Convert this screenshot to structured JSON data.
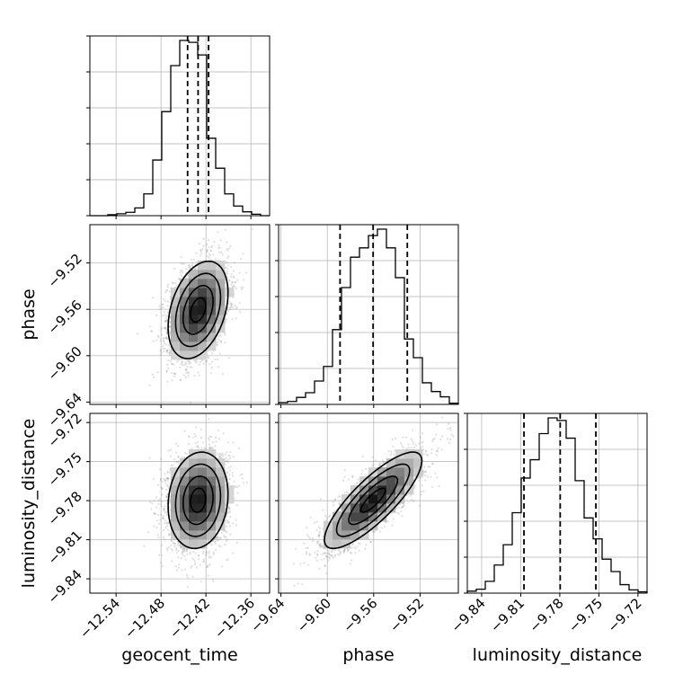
{
  "chart_data": {
    "type": "corner",
    "parameters": [
      "geocent_time",
      "phase",
      "luminosity_distance"
    ],
    "axis_labels": {
      "geocent_time": "geocent_time",
      "phase": "phase",
      "luminosity_distance": "luminosity_distance"
    },
    "grid": true,
    "ranges": {
      "geocent_time": [
        -12.575,
        -12.335
      ],
      "phase": [
        -9.642,
        -9.487
      ],
      "luminosity_distance": [
        -9.851,
        -9.713
      ]
    },
    "ticks": {
      "geocent_time": [
        -12.54,
        -12.48,
        -12.42,
        -12.36
      ],
      "phase": [
        -9.64,
        -9.6,
        -9.56,
        -9.52
      ],
      "luminosity_distance": [
        -9.84,
        -9.81,
        -9.78,
        -9.75,
        -9.72
      ]
    },
    "tick_labels": {
      "geocent_time": [
        "−12.54",
        "−12.48",
        "−12.42",
        "−12.36"
      ],
      "phase": [
        "−9.64",
        "−9.60",
        "−9.56",
        "−9.52"
      ],
      "luminosity_distance": [
        "−9.84",
        "−9.81",
        "−9.78",
        "−9.75",
        "−9.72"
      ]
    },
    "quantiles": {
      "geocent_time": [
        -12.4445,
        -12.4305,
        -12.4165
      ],
      "phase": [
        -9.589,
        -9.5605,
        -9.531
      ],
      "luminosity_distance": [
        -9.8075,
        -9.7797,
        -9.7523
      ]
    },
    "histograms": {
      "geocent_time": {
        "bin_edges": [
          -12.575,
          -12.563,
          -12.551,
          -12.539,
          -12.527,
          -12.515,
          -12.503,
          -12.491,
          -12.479,
          -12.467,
          -12.455,
          -12.443,
          -12.431,
          -12.419,
          -12.407,
          -12.395,
          -12.383,
          -12.371,
          -12.359,
          -12.347,
          -12.335
        ],
        "counts": [
          0,
          0,
          2,
          4,
          7,
          16,
          45,
          115,
          215,
          310,
          362,
          358,
          332,
          160,
          98,
          45,
          20,
          8,
          3,
          0
        ]
      },
      "phase": {
        "bin_edges": [
          -9.642,
          -9.63425,
          -9.6265,
          -9.61875,
          -9.611,
          -9.60325,
          -9.5955,
          -9.58775,
          -9.58,
          -9.57225,
          -9.5645,
          -9.55675,
          -9.549,
          -9.54125,
          -9.5335,
          -9.52575,
          -9.518,
          -9.51025,
          -9.5025,
          -9.49475,
          -9.487
        ],
        "counts": [
          3,
          5,
          12,
          20,
          40,
          65,
          128,
          200,
          252,
          268,
          289,
          300,
          268,
          217,
          112,
          80,
          37,
          22,
          13,
          2
        ]
      },
      "luminosity_distance": {
        "bin_edges": [
          -9.851,
          -9.8441,
          -9.8372,
          -9.8303,
          -9.8234,
          -9.8165,
          -9.8096,
          -9.8027,
          -9.7958,
          -9.7889,
          -9.782,
          -9.7751,
          -9.7682,
          -9.7613,
          -9.7544,
          -9.7475,
          -9.7406,
          -9.7337,
          -9.7268,
          -9.7199,
          -9.713
        ],
        "counts": [
          3,
          6,
          18,
          43,
          74,
          123,
          176,
          204,
          244,
          268,
          264,
          237,
          172,
          115,
          83,
          52,
          33,
          13,
          5,
          2
        ]
      }
    },
    "pairs": [
      {
        "x": "geocent_time",
        "y": "phase",
        "center": [
          -12.4305,
          -9.5605
        ],
        "sigma": [
          0.02,
          0.021
        ],
        "correlation": 0.35,
        "contour_levels_sigma": [
          0.5,
          1.0,
          1.5,
          2.0
        ],
        "n_samples": 3000
      },
      {
        "x": "geocent_time",
        "y": "luminosity_distance",
        "center": [
          -12.4305,
          -9.7797
        ],
        "sigma": [
          0.02,
          0.0185
        ],
        "correlation": 0.12,
        "contour_levels_sigma": [
          0.5,
          1.0,
          1.5,
          2.0
        ],
        "n_samples": 3000
      },
      {
        "x": "phase",
        "y": "luminosity_distance",
        "center": [
          -9.5605,
          -9.7797
        ],
        "sigma": [
          0.021,
          0.0185
        ],
        "correlation": 0.82,
        "contour_levels_sigma": [
          0.5,
          1.0,
          1.5,
          2.0
        ],
        "n_samples": 3000
      }
    ],
    "colors": {
      "line": "#000000",
      "quantile": "#000000",
      "grid": "#b0b0b0",
      "points": "#808080"
    }
  }
}
